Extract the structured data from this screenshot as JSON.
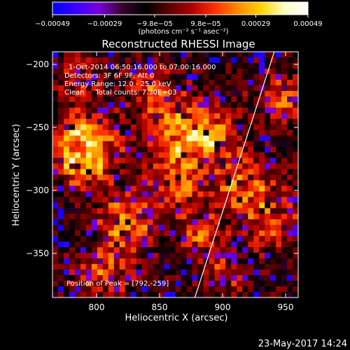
{
  "chart_data": {
    "type": "heatmap",
    "title": "Reconstructed RHESSI Image",
    "xlabel": "Heliocentric X (arcsec)",
    "ylabel": "Heliocentric Y (arcsec)",
    "xlim": [
      765,
      960
    ],
    "ylim": [
      -385,
      -190
    ],
    "xticks": [
      800,
      850,
      900,
      950
    ],
    "yticks": [
      -200,
      -250,
      -300,
      -350
    ],
    "xtick_labels": [
      "800",
      "850",
      "900",
      "950"
    ],
    "ytick_labels": [
      "−200",
      "−250",
      "−300",
      "−350"
    ],
    "colorbar": {
      "min": -0.00049,
      "max": 0.00049,
      "tick_values": [
        -0.00049,
        -0.00029,
        -9.8e-05,
        9.8e-05,
        0.00029,
        0.00049
      ],
      "tick_labels": [
        "−0.00049",
        "−0.00029",
        "−9.8e−05",
        "9.8e−05",
        "0.00029",
        "0.00049"
      ],
      "units": "(photons cm⁻² s⁻¹ asec⁻²)",
      "colormap": [
        "#0000ff",
        "#3a00ff",
        "#7a00d8",
        "#3a0030",
        "#000000",
        "#5a0000",
        "#b00000",
        "#ff3000",
        "#ff8c00",
        "#ffd400",
        "#ffffc8",
        "#ffffff"
      ]
    },
    "annotations": {
      "time": "1-Oct-2014 06:50:16.000 to 07:00:16.000",
      "detectors": "Detectors: 3F 6F 9F, Att 0",
      "energy": "Energy Range: 12.0 - 25.0 keV",
      "clean": "Clean     Total counts: 7.30E+03",
      "peak": "Position of Peak = [792,-259]"
    },
    "peak": {
      "x": 792,
      "y": -259
    },
    "limb_line": {
      "x1": 878,
      "y1": -385,
      "x2": 941,
      "y2": -190
    },
    "grid": false,
    "legend": "none"
  },
  "footer": {
    "date": "23-May-2017 14:24"
  }
}
